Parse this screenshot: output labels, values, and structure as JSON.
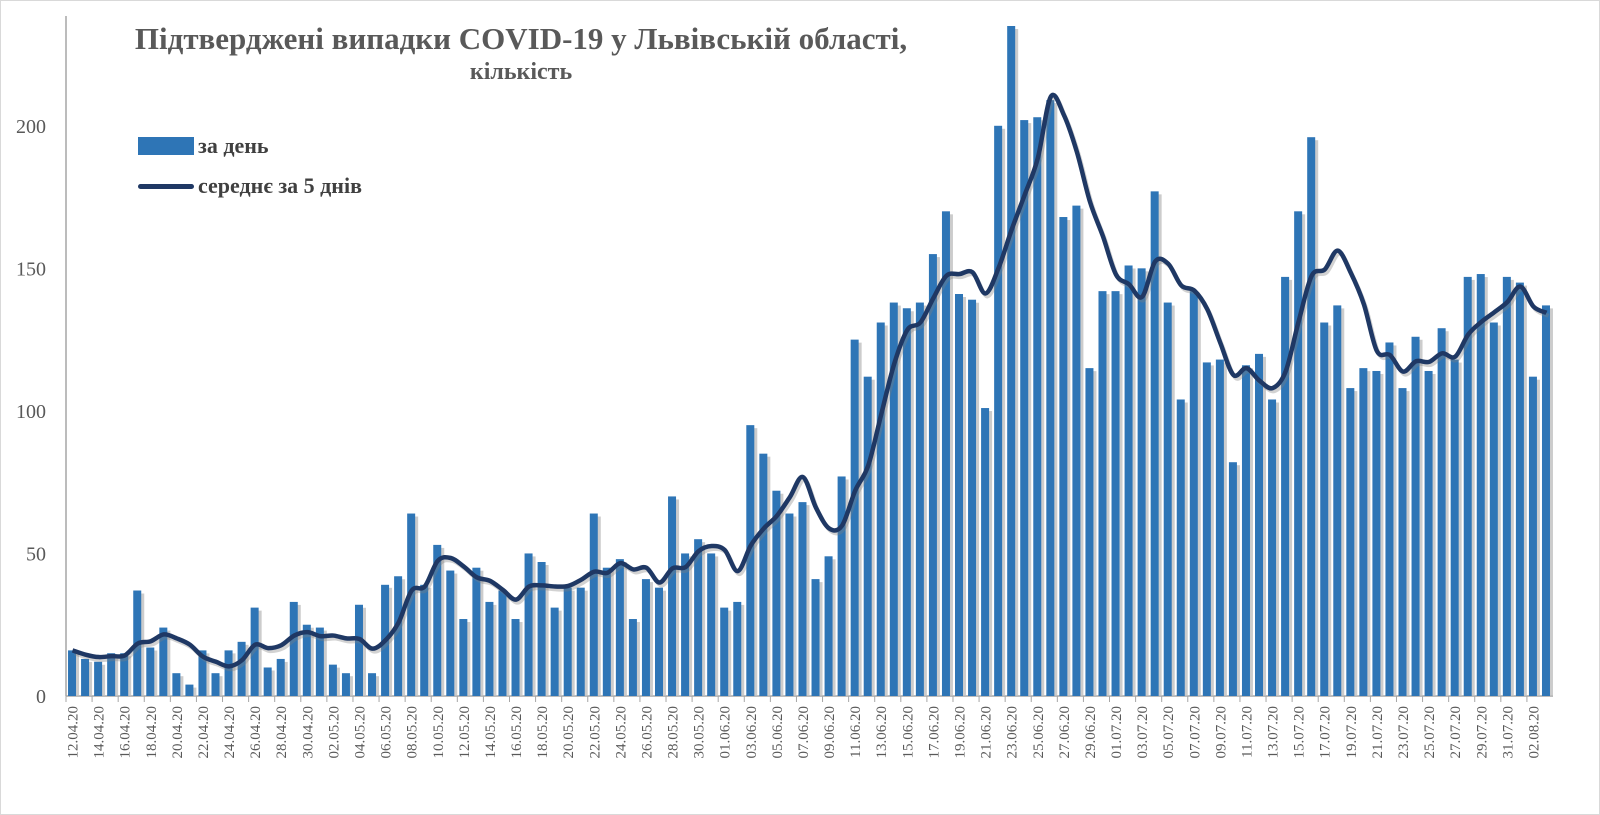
{
  "chart_data": {
    "type": "bar",
    "title": "Підтверджені випадки COVID-19 у Львівській області,",
    "subtitle": "кількість",
    "xlabel": "",
    "ylabel": "",
    "ylim": [
      0,
      235
    ],
    "yticks": [
      "0",
      "50",
      "100",
      "150",
      "200"
    ],
    "grid": false,
    "legend_position": "top-left",
    "tick_labels": [
      "12.04.20",
      "14.04.20",
      "16.04.20",
      "18.04.20",
      "20.04.20",
      "22.04.20",
      "24.04.20",
      "26.04.20",
      "28.04.20",
      "30.04.20",
      "02.05.20",
      "04.05.20",
      "06.05.20",
      "08.05.20",
      "10.05.20",
      "12.05.20",
      "14.05.20",
      "16.05.20",
      "18.05.20",
      "20.05.20",
      "22.05.20",
      "24.05.20",
      "26.05.20",
      "28.05.20",
      "30.05.20",
      "01.06.20",
      "03.06.20",
      "05.06.20",
      "07.06.20",
      "09.06.20",
      "11.06.20",
      "13.06.20",
      "15.06.20",
      "17.06.20",
      "19.06.20",
      "21.06.20",
      "23.06.20",
      "25.06.20",
      "27.06.20",
      "29.06.20",
      "01.07.20",
      "03.07.20",
      "05.07.20",
      "07.07.20",
      "09.07.20",
      "11.07.20",
      "13.07.20",
      "15.07.20",
      "17.07.20",
      "19.07.20",
      "21.07.20",
      "23.07.20",
      "25.07.20",
      "27.07.20",
      "29.07.20",
      "31.07.20",
      "02.08.20"
    ],
    "series": [
      {
        "name": "за день",
        "type": "bar",
        "color": "#2e75b6",
        "values": [
          16,
          13,
          12,
          15,
          15,
          37,
          17,
          24,
          8,
          4,
          16,
          8,
          16,
          19,
          31,
          10,
          13,
          33,
          25,
          24,
          11,
          8,
          32,
          8,
          39,
          42,
          64,
          39,
          53,
          44,
          27,
          45,
          33,
          37,
          27,
          50,
          47,
          31,
          38,
          38,
          64,
          45,
          48,
          27,
          41,
          38,
          70,
          50,
          55,
          50,
          31,
          33,
          95,
          85,
          72,
          64,
          68,
          41,
          49,
          77,
          125,
          112,
          131,
          138,
          136,
          138,
          155,
          170,
          141,
          139,
          101,
          200,
          237,
          202,
          203,
          209,
          168,
          172,
          115,
          142,
          142,
          151,
          150,
          177,
          138,
          104,
          142,
          117,
          118,
          82,
          116,
          120,
          104,
          147,
          170,
          196,
          131,
          137,
          108,
          115,
          114,
          124,
          108,
          126,
          114,
          129,
          118,
          147,
          148,
          131,
          147,
          145,
          112,
          137
        ]
      },
      {
        "name": "середнє за 5 днів",
        "type": "line",
        "color": "#1f3864",
        "window": 5
      }
    ]
  }
}
